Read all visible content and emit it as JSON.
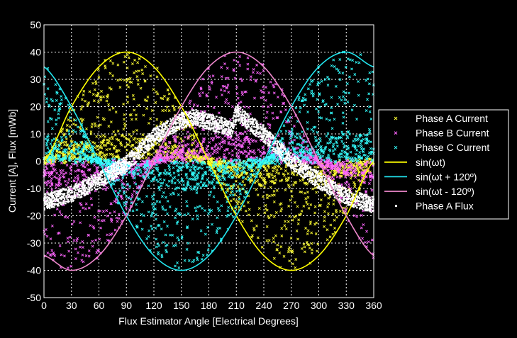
{
  "chart_data": {
    "type": "scatter",
    "title": "",
    "xlabel": "Flux Estimator Angle [Electrical Degrees]",
    "ylabel": "Current [A], Flux [mWb]",
    "xlim": [
      0,
      360
    ],
    "ylim": [
      -50,
      50
    ],
    "xticks": [
      0,
      30,
      60,
      90,
      120,
      150,
      180,
      210,
      240,
      270,
      300,
      330,
      360
    ],
    "yticks": [
      -50,
      -40,
      -30,
      -20,
      -10,
      0,
      10,
      20,
      30,
      40,
      50
    ],
    "grid": true,
    "legend_position": "right",
    "series": [
      {
        "name": "Phase A Current",
        "kind": "scatter",
        "marker": "x",
        "color": "#ffff33",
        "model": "40*sin(theta)",
        "spread": "uniform between 0 and the envelope, dense near zero",
        "count": 1400
      },
      {
        "name": "Phase B Current",
        "kind": "scatter",
        "marker": "x",
        "color": "#ff66ff",
        "model": "40*sin(theta - 120)",
        "spread": "uniform between 0 and the envelope, dense near zero",
        "count": 1400
      },
      {
        "name": "Phase C Current",
        "kind": "scatter",
        "marker": "x",
        "color": "#33ffff",
        "model": "40*sin(theta + 120)",
        "spread": "uniform between 0 and the envelope, dense near zero",
        "count": 1400
      },
      {
        "name": "sin(ωt)",
        "kind": "line",
        "color": "#ffff00",
        "x": [
          0,
          30,
          60,
          90,
          120,
          150,
          180,
          210,
          240,
          270,
          300,
          330,
          360
        ],
        "y": [
          0,
          20,
          34.6,
          40,
          34.6,
          20,
          0,
          -20,
          -34.6,
          -40,
          -34.6,
          -20,
          0
        ]
      },
      {
        "name": "sin(ωt + 120º)",
        "kind": "line",
        "color": "#22e5ee",
        "x": [
          0,
          30,
          60,
          90,
          120,
          150,
          180,
          210,
          240,
          270,
          300,
          330,
          360
        ],
        "y": [
          34.6,
          20,
          0,
          -20,
          -34.6,
          -40,
          -34.6,
          -20,
          0,
          20,
          34.6,
          40,
          34.6
        ]
      },
      {
        "name": "sin(ωt - 120º)",
        "kind": "line",
        "color": "#ee88cc",
        "x": [
          0,
          30,
          60,
          90,
          120,
          150,
          180,
          210,
          240,
          270,
          300,
          330,
          360
        ],
        "y": [
          -34.6,
          -40,
          -34.6,
          -20,
          0,
          20,
          34.6,
          40,
          34.6,
          20,
          0,
          -20,
          -34.6
        ]
      },
      {
        "name": "Phase A Flux",
        "kind": "scatter",
        "marker": "dot",
        "color": "#ffffff",
        "x": [
          0,
          30,
          60,
          90,
          120,
          150,
          165,
          205,
          210,
          240,
          270,
          300,
          330,
          360
        ],
        "y": [
          -15,
          -12,
          -7,
          -1,
          9,
          15,
          16,
          12,
          18,
          10,
          0,
          -7,
          -13,
          -16
        ],
        "count": 3000
      }
    ]
  }
}
